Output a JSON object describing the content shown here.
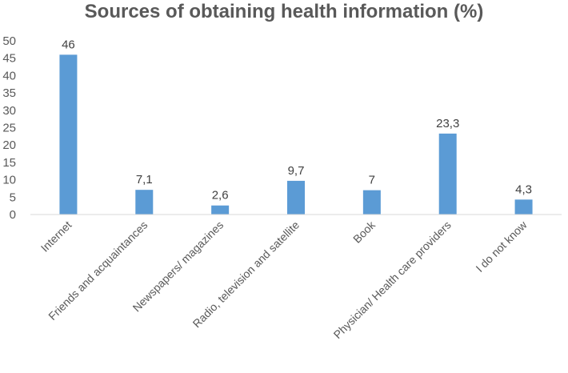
{
  "chart_data": {
    "type": "bar",
    "title": "Sources of obtaining health information  (%)",
    "categories": [
      "Internet",
      "Friends and acquaintances",
      "Newspapers/ magazines",
      "Radio, television and satellite",
      "Book",
      "Physician/ Health care providers",
      "I do not know"
    ],
    "values": [
      46,
      7.1,
      2.6,
      9.7,
      7,
      23.3,
      4.3
    ],
    "data_labels": [
      "46",
      "7,1",
      "2,6",
      "9,7",
      "7",
      "23,3",
      "4,3"
    ],
    "y_ticks": [
      "0",
      "5",
      "10",
      "15",
      "20",
      "25",
      "30",
      "35",
      "40",
      "45",
      "50"
    ],
    "ylim": [
      0,
      50
    ],
    "grid": false,
    "legend": "none",
    "bar_color": "#5B9BD5",
    "axis_color": "#D9D9D9"
  }
}
